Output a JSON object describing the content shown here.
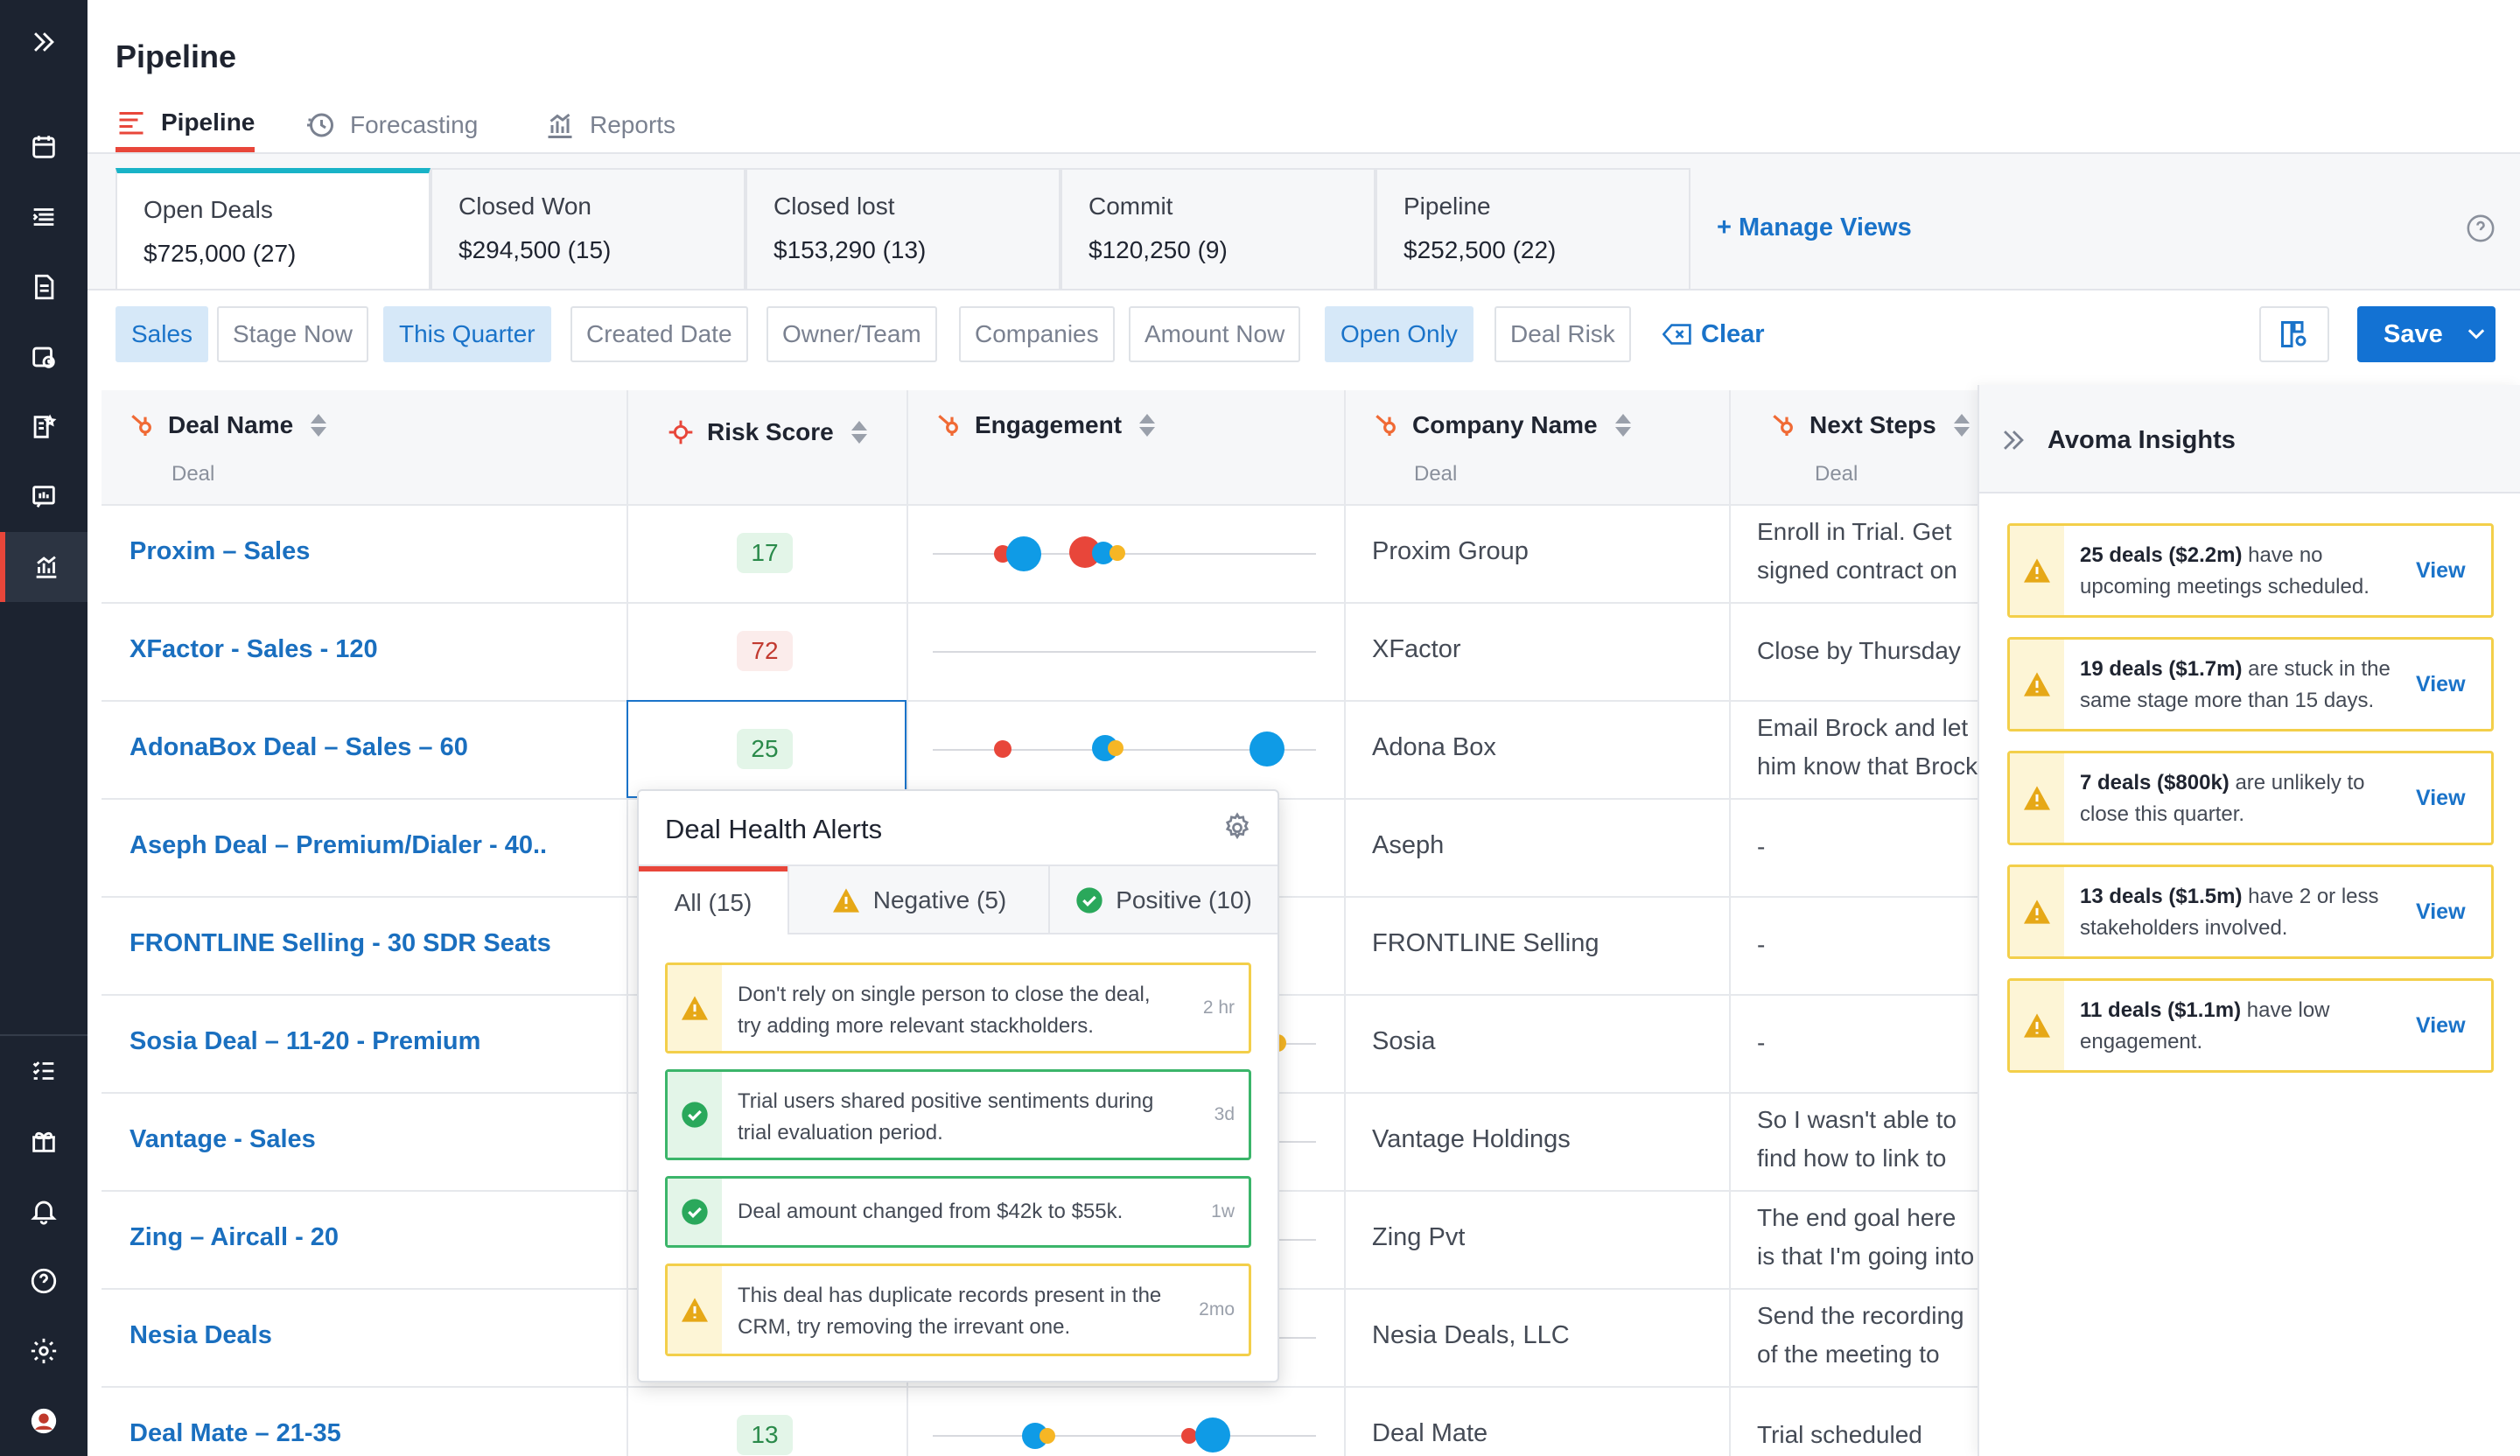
{
  "page": {
    "title": "Pipeline"
  },
  "tabs": [
    {
      "label": "Pipeline",
      "icon": "pipeline-icon",
      "active": true
    },
    {
      "label": "Forecasting",
      "icon": "forecasting-icon",
      "active": false
    },
    {
      "label": "Reports",
      "icon": "reports-icon",
      "active": false
    }
  ],
  "views": [
    {
      "name": "Open Deals",
      "value": "$725,000 (27)",
      "active": true
    },
    {
      "name": "Closed Won",
      "value": "$294,500 (15)",
      "active": false
    },
    {
      "name": "Closed lost",
      "value": "$153,290 (13)",
      "active": false
    },
    {
      "name": "Commit",
      "value": "$120,250 (9)",
      "active": false
    },
    {
      "name": "Pipeline",
      "value": "$252,500 (22)",
      "active": false
    }
  ],
  "manage_views_label": "+ Manage Views",
  "filters": [
    {
      "label": "Sales",
      "active": true
    },
    {
      "label": "Stage Now",
      "active": false
    },
    {
      "label": "This Quarter",
      "active": true
    },
    {
      "label": "Created Date",
      "active": false
    },
    {
      "label": "Owner/Team",
      "active": false
    },
    {
      "label": "Companies",
      "active": false
    },
    {
      "label": "Amount Now",
      "active": false
    },
    {
      "label": "Open Only",
      "active": true
    },
    {
      "label": "Deal Risk",
      "active": false
    }
  ],
  "clear_label": "Clear",
  "save_label": "Save",
  "columns": {
    "deal_name": {
      "label": "Deal Name",
      "sub": "Deal"
    },
    "risk_score": {
      "label": "Risk Score"
    },
    "engagement": {
      "label": "Engagement"
    },
    "company_name": {
      "label": "Company Name",
      "sub": "Deal"
    },
    "next_steps": {
      "label": "Next Steps",
      "sub": "Deal"
    }
  },
  "rows": [
    {
      "deal": "Proxim – Sales",
      "score": "17",
      "risk": "good",
      "company": "Proxim Group",
      "next": "Enroll in Trial. Get signed contract on Tuesday"
    },
    {
      "deal": "XFactor - Sales - 120",
      "score": "72",
      "risk": "bad",
      "company": "XFactor",
      "next": "Close by Thursday"
    },
    {
      "deal": "AdonaBox Deal – Sales – 60",
      "score": "25",
      "risk": "good",
      "company": "Adona Box",
      "next": "Email Brock and let him know that Brock can go..."
    },
    {
      "deal": "Aseph Deal – Premium/Dialer - 40..",
      "score": "",
      "risk": "",
      "company": "Aseph",
      "next": "-"
    },
    {
      "deal": "FRONTLINE Selling - 30 SDR Seats",
      "score": "",
      "risk": "",
      "company": "FRONTLINE Selling",
      "next": "-"
    },
    {
      "deal": "Sosia Deal – 11-20 - Premium",
      "score": "",
      "risk": "",
      "company": "Sosia",
      "next": "-"
    },
    {
      "deal": "Vantage - Sales",
      "score": "",
      "risk": "",
      "company": "Vantage Holdings",
      "next": "So I wasn't able to find how to link to the call"
    },
    {
      "deal": "Zing – Aircall - 20",
      "score": "",
      "risk": "",
      "company": "Zing Pvt",
      "next": "The end goal here is that I'm going into a next call"
    },
    {
      "deal": "Nesia Deals",
      "score": "",
      "risk": "",
      "company": "Nesia Deals, LLC",
      "next": "Send the recording of the meeting to David's team"
    },
    {
      "deal": "Deal Mate – 21-35",
      "score": "13",
      "risk": "good",
      "company": "Deal Mate",
      "next": "Trial scheduled"
    }
  ],
  "popover": {
    "title": "Deal Health Alerts",
    "tabs": [
      {
        "label": "All (15)",
        "active": true
      },
      {
        "label": "Negative (5)",
        "active": false
      },
      {
        "label": "Positive (10)",
        "active": false
      }
    ],
    "alerts": [
      {
        "type": "warn",
        "text": "Don't rely on single person to close the deal, try adding more relevant stackholders.",
        "time": "2 hr"
      },
      {
        "type": "ok",
        "text": "Trial users shared positive sentiments during trial evaluation period.",
        "time": "3d"
      },
      {
        "type": "ok",
        "text": "Deal amount changed from $42k to $55k.",
        "time": "1w"
      },
      {
        "type": "warn",
        "text": "This deal has duplicate records present in the CRM, try removing the irrevant one.",
        "time": "2mo"
      }
    ]
  },
  "insights": {
    "title": "Avoma Insights",
    "view_label": "View",
    "items": [
      {
        "bold": "25 deals ($2.2m)",
        "rest": " have no upcoming meetings scheduled."
      },
      {
        "bold": "19 deals ($1.7m)",
        "rest": " are stuck in the same stage more than 15 days."
      },
      {
        "bold": "7 deals ($800k)",
        "rest": " are unlikely to close this quarter."
      },
      {
        "bold": "13 deals ($1.5m)",
        "rest": " have 2 or less stakeholders involved."
      },
      {
        "bold": "11 deals ($1.1m)",
        "rest": " have low engagement."
      }
    ]
  },
  "colors": {
    "accent": "#1372d3",
    "active_tab": "#e8463a",
    "view_active": "#19b3c7",
    "warn": "#f3cf4a",
    "ok": "#3bb56a",
    "dot_blue": "#0f9be6",
    "dot_red": "#e8463a",
    "dot_yellow": "#f6b625"
  }
}
